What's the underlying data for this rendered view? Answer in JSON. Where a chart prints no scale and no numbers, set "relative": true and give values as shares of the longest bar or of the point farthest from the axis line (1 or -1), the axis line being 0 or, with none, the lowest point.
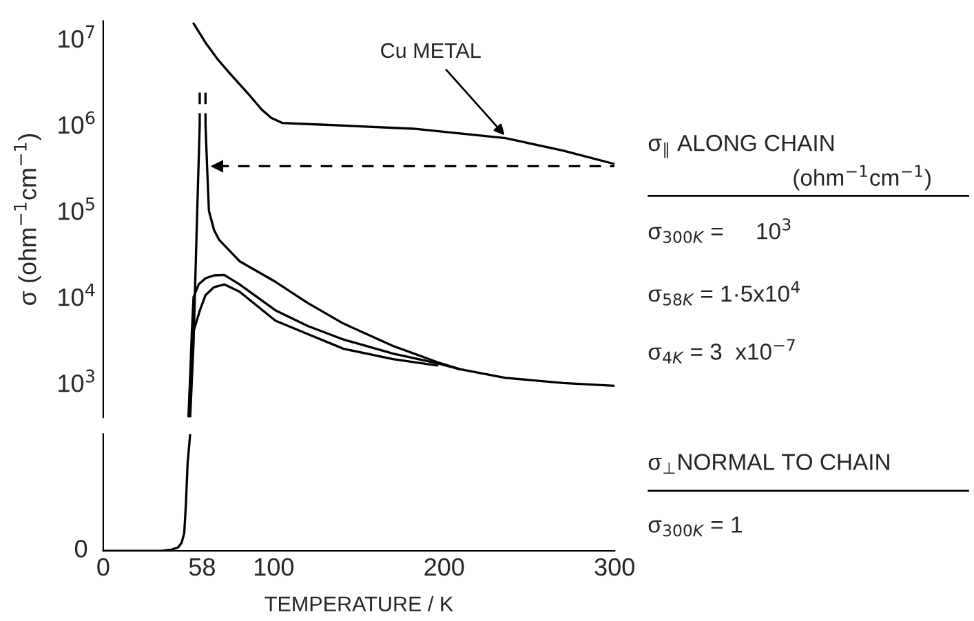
{
  "chart_data": [
    {
      "type": "line",
      "ylabel": "σ (ohm$^{−1}$cm$^{−1}$)",
      "log": true,
      "xlim": [
        0,
        300
      ],
      "ylim": [
        400,
        16000000
      ],
      "tick_labels": "y",
      "yticks": [
        {
          "value": 1000,
          "label": "10$^{3}$"
        },
        {
          "value": 10000,
          "label": "10$^{4}$"
        },
        {
          "value": 100000,
          "label": "10$^{5}$"
        },
        {
          "value": 1000000,
          "label": "10$^{6}$"
        },
        {
          "value": 10000000,
          "label": "10$^{7}$"
        }
      ],
      "series": [
        {
          "color": "#000000",
          "x": [
            53,
            60,
            67,
            74,
            85,
            93,
            98.6,
            105,
            130,
            182,
            236,
            270,
            300
          ],
          "values": [
            15000000,
            9000000,
            5800000,
            4000000,
            2300000,
            1500000,
            1200000,
            1050000,
            1000000,
            900000,
            700000,
            500000,
            350000
          ]
        },
        {
          "color": "#000000",
          "x": [
            51,
            53,
            55,
            56.6,
            null,
            60,
            61,
            62,
            65,
            68,
            80,
            101,
            120,
            141,
            170,
            196,
            209,
            236,
            270,
            300
          ],
          "values": [
            400,
            3000,
            80000,
            1000000,
            null,
            1000000,
            300000,
            100000,
            60000,
            46000,
            26000,
            15000,
            8500,
            4900,
            2700,
            1750,
            1450,
            1150,
            1000,
            930
          ]
        },
        {
          "color": "#000000",
          "line_style": "dashed",
          "x": [
            56.6,
            56.6
          ],
          "values": [
            1000000,
            2500000
          ]
        },
        {
          "color": "#000000",
          "line_style": "dashed",
          "x": [
            60,
            60
          ],
          "values": [
            1000000,
            2500000
          ]
        },
        {
          "color": "#000000",
          "x": [
            50,
            51,
            52,
            53,
            56,
            60,
            65,
            71,
            80,
            101,
            120,
            141,
            170,
            196,
            209
          ],
          "values": [
            400,
            1200,
            4000,
            10000,
            14000,
            16500,
            17800,
            18000,
            14000,
            7000,
            4600,
            3200,
            2200,
            1700,
            1450
          ]
        },
        {
          "color": "#000000",
          "x": [
            50.5,
            51.5,
            53,
            56.6,
            60,
            65,
            71,
            80,
            101,
            120,
            141,
            170,
            196
          ],
          "values": [
            600,
            1500,
            4000,
            6900,
            10500,
            13000,
            14000,
            11500,
            5300,
            3700,
            2500,
            1900,
            1600
          ]
        },
        {
          "color": "#000000",
          "line_style": "dashed",
          "x": [
            67,
            300
          ],
          "values": [
            330000,
            330000
          ]
        }
      ],
      "annotations": [
        {
          "text": "Cu METAL",
          "x": 237,
          "y": 700000
        }
      ]
    },
    {
      "type": "line",
      "relative": true,
      "xlabel": "TEMPERATURE / K",
      "xlim": [
        0,
        300
      ],
      "xticks": [
        0,
        58,
        100,
        200,
        300
      ],
      "tick_labels": "x",
      "series": [
        {
          "color": "#000000",
          "x": [
            0,
            34,
            40,
            44,
            46,
            47.5,
            48.5,
            49.5,
            51
          ],
          "values": [
            0,
            0,
            0.01,
            0.03,
            0.07,
            0.15,
            0.4,
            0.75,
            1
          ]
        }
      ],
      "annotations": [
        "0"
      ]
    },
    {
      "type": "other",
      "annotations": [
        "σ$_{∥}$ ALONG CHAIN",
        "(ohm$^{−1}$cm$^{−1}$)",
        "σ$_{300K}$ =     10$^{3}$",
        "σ$_{58K}$ = 1·5x10$^{4}$",
        "σ$_{4K}$ = 3  x10$^{−7}$",
        "σ$_{⊥}$NORMAL TO CHAIN",
        "σ$_{300K}$ = 1"
      ]
    }
  ]
}
